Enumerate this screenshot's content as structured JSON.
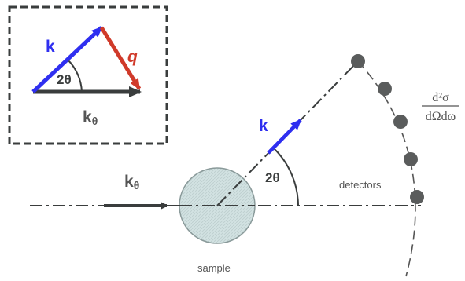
{
  "colors": {
    "k_vector": "#2f2ff0",
    "q_vector": "#d03a2a",
    "dark": "#3a3d3d",
    "sample_fill": "#cfe0e0",
    "sample_stroke": "#8a9a9a",
    "detector": "#5a5c5c",
    "text_gray": "#555555"
  },
  "inset": {
    "k_label": "k",
    "q_label": "q",
    "angle_label": "2θ",
    "k0_main": "k",
    "k0_sub": "θ"
  },
  "main": {
    "k0_main": "k",
    "k0_sub": "θ",
    "k_label": "k",
    "angle_label": "2θ",
    "detectors_label": "detectors",
    "sample_label": "sample",
    "cross_section_numerator": "d²σ",
    "cross_section_denominator": "dΩdω"
  },
  "icons": {
    "detector": "detector-dot-icon"
  }
}
